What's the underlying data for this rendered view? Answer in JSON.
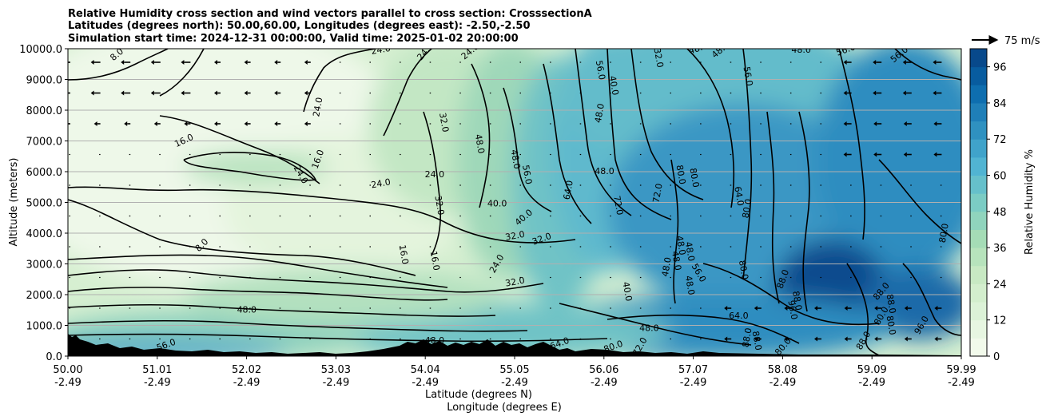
{
  "chart_data": {
    "type": "heatmap",
    "title_lines": [
      "Relative Humidity cross section and wind vectors parallel to cross section: CrosssectionA",
      "Latitudes (degrees north): 50.00,60.00, Longitudes (degrees east): -2.50,-2.50",
      "Simulation start time: 2024-12-31 00:00:00, Valid time: 2025-01-02 20:00:00"
    ],
    "xlabel_lat": "Latitude (degrees N)",
    "xlabel_lon": "Longitude (degrees E)",
    "ylabel": "Altitude (meters)",
    "xlim": [
      50.0,
      59.99
    ],
    "ylim": [
      0,
      10000
    ],
    "x_ticks_lat": [
      "50.00",
      "51.01",
      "52.02",
      "53.03",
      "54.04",
      "55.05",
      "56.06",
      "57.07",
      "58.08",
      "59.09",
      "59.99"
    ],
    "x_ticks_lon": [
      "-2.49",
      "-2.49",
      "-2.49",
      "-2.49",
      "-2.49",
      "-2.49",
      "-2.49",
      "-2.49",
      "-2.49",
      "-2.49",
      "-2.49"
    ],
    "y_ticks": [
      "0.0",
      "1000.0",
      "2000.0",
      "3000.0",
      "4000.0",
      "5000.0",
      "6000.0",
      "7000.0",
      "8000.0",
      "9000.0",
      "10000.0"
    ],
    "y_tick_values": [
      0,
      1000,
      2000,
      3000,
      4000,
      5000,
      6000,
      7000,
      8000,
      9000,
      10000
    ],
    "grid": true,
    "colorbar": {
      "label": "Relative Humidity %",
      "ticks": [
        "0",
        "12",
        "24",
        "36",
        "48",
        "60",
        "72",
        "84",
        "96"
      ],
      "tick_values": [
        0,
        12,
        24,
        36,
        48,
        60,
        72,
        84,
        96
      ],
      "range": [
        0,
        102
      ],
      "colors": [
        "#f7fcf0",
        "#e0f3db",
        "#ccebc5",
        "#a8ddb5",
        "#7bccc4",
        "#4eb3d3",
        "#2b8cbe",
        "#0868ac",
        "#084081"
      ]
    },
    "quiver_key": "75 m/s",
    "contour_labels": [
      {
        "text": "8.0",
        "lat": 50.55,
        "alt": 9800,
        "rot": -40
      },
      {
        "text": "24.0",
        "lat": 53.5,
        "alt": 9950,
        "rot": -10
      },
      {
        "text": "24.0",
        "lat": 54.0,
        "alt": 9900,
        "rot": -50
      },
      {
        "text": "24.0",
        "lat": 54.5,
        "alt": 9900,
        "rot": -40
      },
      {
        "text": "24.0",
        "lat": 52.8,
        "alt": 8100,
        "rot": -80
      },
      {
        "text": "32.0",
        "lat": 54.2,
        "alt": 7600,
        "rot": 80
      },
      {
        "text": "16.0",
        "lat": 51.3,
        "alt": 7000,
        "rot": -25
      },
      {
        "text": "16.0",
        "lat": 52.8,
        "alt": 6400,
        "rot": -70
      },
      {
        "text": "24.0",
        "lat": 52.6,
        "alt": 5900,
        "rot": 60
      },
      {
        "text": "24.0",
        "lat": 53.5,
        "alt": 5600,
        "rot": -10
      },
      {
        "text": "24.0",
        "lat": 54.1,
        "alt": 5900,
        "rot": 0
      },
      {
        "text": "32.0",
        "lat": 54.15,
        "alt": 4900,
        "rot": 80
      },
      {
        "text": "8.0",
        "lat": 51.5,
        "alt": 3600,
        "rot": -45
      },
      {
        "text": "16.0",
        "lat": 53.75,
        "alt": 3300,
        "rot": 80
      },
      {
        "text": "16.0",
        "lat": 54.1,
        "alt": 3100,
        "rot": 80
      },
      {
        "text": "24.0",
        "lat": 54.8,
        "alt": 3000,
        "rot": -60
      },
      {
        "text": "32.0",
        "lat": 55.0,
        "alt": 2400,
        "rot": -10
      },
      {
        "text": "40.0",
        "lat": 54.8,
        "alt": 4950,
        "rot": 0
      },
      {
        "text": "40.0",
        "lat": 55.1,
        "alt": 4500,
        "rot": -40
      },
      {
        "text": "32.0",
        "lat": 55.0,
        "alt": 3900,
        "rot": -10
      },
      {
        "text": "32.0",
        "lat": 55.3,
        "alt": 3800,
        "rot": -20
      },
      {
        "text": "48.0",
        "lat": 54.6,
        "alt": 6900,
        "rot": 80
      },
      {
        "text": "48.0",
        "lat": 55.0,
        "alt": 6400,
        "rot": 80
      },
      {
        "text": "56.0",
        "lat": 55.13,
        "alt": 5900,
        "rot": 80
      },
      {
        "text": "64.0",
        "lat": 55.6,
        "alt": 5400,
        "rot": -80
      },
      {
        "text": "48.0",
        "lat": 56.0,
        "alt": 6000,
        "rot": 0
      },
      {
        "text": "72.0",
        "lat": 56.15,
        "alt": 4900,
        "rot": 80
      },
      {
        "text": "72.0",
        "lat": 56.6,
        "alt": 5300,
        "rot": -80
      },
      {
        "text": "56.0",
        "lat": 55.95,
        "alt": 9300,
        "rot": 80
      },
      {
        "text": "40.0",
        "lat": 56.1,
        "alt": 8800,
        "rot": 80
      },
      {
        "text": "48.0",
        "lat": 55.95,
        "alt": 7900,
        "rot": -80
      },
      {
        "text": "32.0",
        "lat": 56.6,
        "alt": 9700,
        "rot": 80
      },
      {
        "text": "48.0",
        "lat": 57.05,
        "alt": 10000,
        "rot": -20
      },
      {
        "text": "48.0",
        "lat": 57.3,
        "alt": 9950,
        "rot": -40
      },
      {
        "text": "48.0",
        "lat": 58.2,
        "alt": 9950,
        "rot": 0
      },
      {
        "text": "56.0",
        "lat": 58.7,
        "alt": 9950,
        "rot": -20
      },
      {
        "text": "56.0",
        "lat": 59.3,
        "alt": 9800,
        "rot": -40
      },
      {
        "text": "56.0",
        "lat": 57.6,
        "alt": 9100,
        "rot": 80
      },
      {
        "text": "80.0",
        "lat": 56.85,
        "alt": 5900,
        "rot": 80
      },
      {
        "text": "80.0",
        "lat": 57.0,
        "alt": 5800,
        "rot": 80
      },
      {
        "text": "64.0",
        "lat": 57.5,
        "alt": 5200,
        "rot": 80
      },
      {
        "text": "80.0",
        "lat": 57.6,
        "alt": 4800,
        "rot": -80
      },
      {
        "text": "80.0",
        "lat": 59.8,
        "alt": 4000,
        "rot": -80
      },
      {
        "text": "48.0",
        "lat": 56.85,
        "alt": 3600,
        "rot": 80
      },
      {
        "text": "48.0",
        "lat": 56.95,
        "alt": 3400,
        "rot": 80
      },
      {
        "text": "48.0",
        "lat": 56.8,
        "alt": 3100,
        "rot": 80
      },
      {
        "text": "48.0",
        "lat": 56.7,
        "alt": 2900,
        "rot": -80
      },
      {
        "text": "56.0",
        "lat": 57.05,
        "alt": 2700,
        "rot": 60
      },
      {
        "text": "48.0",
        "lat": 56.95,
        "alt": 2300,
        "rot": 80
      },
      {
        "text": "40.0",
        "lat": 56.25,
        "alt": 2100,
        "rot": 80
      },
      {
        "text": "80.0",
        "lat": 57.55,
        "alt": 2800,
        "rot": 80
      },
      {
        "text": "88.0",
        "lat": 58.0,
        "alt": 2500,
        "rot": -70
      },
      {
        "text": "88.0",
        "lat": 58.15,
        "alt": 1800,
        "rot": 80
      },
      {
        "text": "96.0",
        "lat": 58.1,
        "alt": 1500,
        "rot": 80
      },
      {
        "text": "88.0",
        "lat": 59.1,
        "alt": 2100,
        "rot": -50
      },
      {
        "text": "88.0",
        "lat": 59.2,
        "alt": 1700,
        "rot": 80
      },
      {
        "text": "80.0",
        "lat": 59.1,
        "alt": 1300,
        "rot": -60
      },
      {
        "text": "80.0",
        "lat": 59.2,
        "alt": 1000,
        "rot": 80
      },
      {
        "text": "96.0",
        "lat": 59.55,
        "alt": 1000,
        "rot": -60
      },
      {
        "text": "48.0",
        "lat": 52.0,
        "alt": 1500,
        "rot": 0
      },
      {
        "text": "48.0",
        "lat": 56.5,
        "alt": 900,
        "rot": 0
      },
      {
        "text": "64.0",
        "lat": 57.5,
        "alt": 1300,
        "rot": 0
      },
      {
        "text": "88.0",
        "lat": 57.6,
        "alt": 600,
        "rot": -80
      },
      {
        "text": "88.0",
        "lat": 57.7,
        "alt": 500,
        "rot": 80
      },
      {
        "text": "80.0",
        "lat": 58.0,
        "alt": 300,
        "rot": -50
      },
      {
        "text": "88.0",
        "lat": 58.9,
        "alt": 500,
        "rot": -60
      },
      {
        "text": "48.0",
        "lat": 54.1,
        "alt": 500,
        "rot": 0
      },
      {
        "text": "56.0",
        "lat": 51.1,
        "alt": 350,
        "rot": -20
      },
      {
        "text": "80.0",
        "lat": 56.1,
        "alt": 300,
        "rot": -20
      },
      {
        "text": "72.0",
        "lat": 56.4,
        "alt": 300,
        "rot": -60
      },
      {
        "text": "64.0",
        "lat": 55.5,
        "alt": 400,
        "rot": -20
      }
    ]
  }
}
